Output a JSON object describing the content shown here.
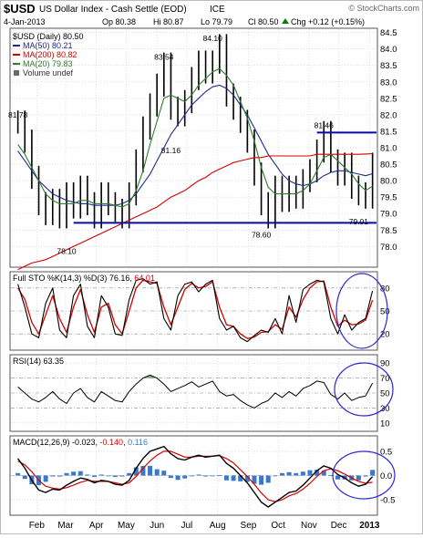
{
  "header": {
    "symbol": "$USD",
    "name": "US Dollar Index - Cash Settle (EOD)",
    "exchange": "ICE",
    "watermark": "© StockCharts.com",
    "date": "4-Jan-2013",
    "quote": {
      "open": "Op 80.38",
      "high": "Hi 80.87",
      "low": "Lo 79.79",
      "close": "Cl 80.50",
      "change": "Chg +0.12 (+0.15%)",
      "change_arrow": "up-arrow-icon"
    }
  },
  "colors": {
    "price": "#000000",
    "ma50": "#1f2a8a",
    "ma200": "#d40000",
    "ma20": "#2e7d2e",
    "support": "#0a0aa8",
    "stoch_k": "#000000",
    "stoch_d": "#d40000",
    "macd_hist": "#3b78c8",
    "rsi_overbought": "#7fa77f",
    "annotation": "#2a2ad0",
    "grid": "#c8c8c8"
  },
  "chart_data": [
    {
      "type": "line",
      "panel": "price",
      "title": "$USD (Daily) 80.50",
      "legend": [
        {
          "label": "MA(50) 80.21",
          "color": "#1f2a8a"
        },
        {
          "label": "MA(200) 80.82",
          "color": "#d40000"
        },
        {
          "label": "MA(20) 79.83",
          "color": "#2e7d2e"
        },
        {
          "label": "Volume undef",
          "color": "#6a6a6a"
        }
      ],
      "ylim": [
        77.4,
        84.6
      ],
      "yticks": [
        78.0,
        78.5,
        79.0,
        79.5,
        80.0,
        80.5,
        81.0,
        81.5,
        82.0,
        82.5,
        83.0,
        83.5,
        84.0,
        84.5
      ],
      "ytick_labels": [
        "78.0",
        "78.5",
        "79.0",
        "79.5",
        "80.0",
        "80.5",
        "81.0",
        "81.5",
        "82.0",
        "82.5",
        "83.0",
        "83.5",
        "84.0",
        "84.5"
      ],
      "x": [
        "2012-01-13",
        "2012-01-20",
        "2012-01-27",
        "2012-02-03",
        "2012-02-10",
        "2012-02-17",
        "2012-02-24",
        "2012-03-02",
        "2012-03-09",
        "2012-03-16",
        "2012-03-23",
        "2012-03-30",
        "2012-04-06",
        "2012-04-13",
        "2012-04-20",
        "2012-04-27",
        "2012-05-04",
        "2012-05-11",
        "2012-05-18",
        "2012-05-25",
        "2012-06-01",
        "2012-06-08",
        "2012-06-15",
        "2012-06-22",
        "2012-06-29",
        "2012-07-06",
        "2012-07-13",
        "2012-07-20",
        "2012-07-27",
        "2012-08-03",
        "2012-08-10",
        "2012-08-17",
        "2012-08-24",
        "2012-08-31",
        "2012-09-07",
        "2012-09-14",
        "2012-09-21",
        "2012-09-28",
        "2012-10-05",
        "2012-10-12",
        "2012-10-19",
        "2012-10-26",
        "2012-11-02",
        "2012-11-09",
        "2012-11-16",
        "2012-11-23",
        "2012-11-30",
        "2012-12-07",
        "2012-12-14",
        "2012-12-21",
        "2012-12-28",
        "2013-01-04"
      ],
      "series": [
        {
          "name": "$USD",
          "values": [
            81.78,
            81.2,
            80.1,
            79.3,
            79.0,
            79.4,
            78.9,
            79.6,
            79.2,
            79.8,
            79.3,
            78.9,
            79.6,
            79.3,
            79.1,
            78.9,
            79.6,
            80.6,
            81.6,
            82.3,
            82.9,
            83.54,
            82.2,
            82.0,
            82.4,
            83.1,
            83.6,
            83.3,
            83.6,
            84.1,
            82.6,
            82.2,
            81.8,
            81.2,
            80.2,
            79.3,
            78.9,
            79.8,
            79.4,
            79.8,
            79.5,
            80.0,
            80.3,
            80.9,
            81.46,
            80.6,
            80.2,
            80.5,
            79.8,
            79.6,
            79.5,
            80.5
          ]
        },
        {
          "name": "MA(50)",
          "values": [
            80.9,
            80.6,
            80.3,
            80.0,
            79.8,
            79.6,
            79.5,
            79.4,
            79.35,
            79.3,
            79.3,
            79.25,
            79.25,
            79.25,
            79.25,
            79.3,
            79.4,
            79.6,
            79.9,
            80.2,
            80.6,
            81.0,
            81.4,
            81.7,
            82.0,
            82.3,
            82.5,
            82.7,
            82.85,
            82.9,
            82.8,
            82.6,
            82.3,
            82.0,
            81.6,
            81.2,
            80.8,
            80.5,
            80.2,
            80.0,
            79.9,
            79.85,
            79.9,
            80.0,
            80.15,
            80.25,
            80.3,
            80.3,
            80.25,
            80.2,
            80.15,
            80.21
          ]
        },
        {
          "name": "MA(200)",
          "values": [
            77.3,
            77.4,
            77.5,
            77.55,
            77.6,
            77.7,
            77.8,
            77.9,
            78.0,
            78.1,
            78.2,
            78.3,
            78.4,
            78.5,
            78.6,
            78.7,
            78.8,
            78.9,
            79.0,
            79.1,
            79.2,
            79.35,
            79.5,
            79.6,
            79.7,
            79.85,
            80.0,
            80.1,
            80.25,
            80.35,
            80.45,
            80.55,
            80.6,
            80.65,
            80.7,
            80.7,
            80.75,
            80.75,
            80.75,
            80.75,
            80.75,
            80.75,
            80.75,
            80.8,
            80.8,
            80.8,
            80.8,
            80.8,
            80.8,
            80.8,
            80.81,
            80.82
          ]
        },
        {
          "name": "MA(20)",
          "values": [
            81.1,
            80.8,
            80.4,
            80.0,
            79.6,
            79.4,
            79.3,
            79.3,
            79.3,
            79.4,
            79.4,
            79.3,
            79.3,
            79.3,
            79.25,
            79.2,
            79.3,
            79.7,
            80.3,
            81.1,
            81.8,
            82.5,
            82.6,
            82.5,
            82.4,
            82.6,
            82.9,
            83.1,
            83.3,
            83.4,
            83.2,
            82.9,
            82.4,
            81.9,
            81.2,
            80.4,
            79.8,
            79.6,
            79.6,
            79.6,
            79.6,
            79.7,
            79.9,
            80.3,
            80.7,
            80.8,
            80.6,
            80.4,
            80.2,
            79.9,
            79.7,
            79.83
          ]
        }
      ],
      "annotations": [
        {
          "text": "81.78",
          "x": "2012-01-13",
          "y": 81.78
        },
        {
          "text": "78.10",
          "x": "2012-03-02",
          "y": 78.1
        },
        {
          "text": "83.54",
          "x": "2012-06-08",
          "y": 83.54
        },
        {
          "text": "81.16",
          "x": "2012-06-15",
          "y": 81.16
        },
        {
          "text": "84.10",
          "x": "2012-07-27",
          "y": 84.1
        },
        {
          "text": "78.60",
          "x": "2012-09-14",
          "y": 78.6
        },
        {
          "text": "81.46",
          "x": "2012-11-16",
          "y": 81.46
        },
        {
          "text": "79.01",
          "x": "2012-12-21",
          "y": 79.01
        }
      ],
      "lines": [
        {
          "type": "support",
          "y": 78.72,
          "from": "2012-03-09",
          "to": "2013-01-04"
        },
        {
          "type": "resistance",
          "y": 81.46,
          "from": "2012-11-09",
          "to": "2013-01-04"
        }
      ],
      "grid": true
    },
    {
      "type": "line",
      "panel": "stochastic",
      "title": "Full STO %K(14,3) %D(3) 76.16, 64.01",
      "title_parts": {
        "label": "Full STO %K(14,3) %D(3) ",
        "k": "76.16",
        "d": "64.01"
      },
      "ylim": [
        0,
        100
      ],
      "yticks": [
        20,
        50,
        80
      ],
      "ytick_labels": [
        "20",
        "50",
        "80"
      ],
      "series": [
        {
          "name": "%K",
          "values": [
            85,
            55,
            20,
            15,
            60,
            80,
            25,
            15,
            70,
            85,
            30,
            15,
            70,
            55,
            20,
            18,
            65,
            90,
            92,
            85,
            88,
            40,
            25,
            70,
            85,
            88,
            75,
            85,
            90,
            40,
            25,
            30,
            15,
            10,
            18,
            25,
            22,
            40,
            20,
            70,
            35,
            78,
            85,
            90,
            88,
            40,
            20,
            45,
            25,
            35,
            40,
            76.16
          ]
        },
        {
          "name": "%D",
          "values": [
            80,
            65,
            35,
            20,
            45,
            70,
            40,
            22,
            55,
            78,
            45,
            22,
            55,
            60,
            32,
            20,
            50,
            80,
            90,
            88,
            86,
            55,
            32,
            55,
            78,
            86,
            80,
            82,
            88,
            55,
            32,
            30,
            20,
            14,
            16,
            22,
            23,
            32,
            26,
            55,
            42,
            65,
            80,
            88,
            89,
            55,
            30,
            38,
            32,
            33,
            38,
            64.01
          ]
        }
      ]
    },
    {
      "type": "line",
      "panel": "rsi",
      "title": "RSI(14) 63.35",
      "ylim": [
        0,
        100
      ],
      "yticks": [
        10,
        30,
        50,
        70,
        90
      ],
      "ytick_labels": [
        "10",
        "30",
        "50",
        "70",
        "90"
      ],
      "series": [
        {
          "name": "RSI(14)",
          "values": [
            58,
            50,
            42,
            38,
            44,
            52,
            42,
            36,
            50,
            56,
            44,
            38,
            52,
            46,
            40,
            38,
            52,
            62,
            70,
            74,
            70,
            62,
            52,
            56,
            60,
            65,
            58,
            62,
            66,
            52,
            46,
            48,
            40,
            34,
            30,
            36,
            40,
            50,
            44,
            52,
            46,
            56,
            60,
            66,
            64,
            48,
            42,
            50,
            40,
            44,
            46,
            63.35
          ]
        }
      ]
    },
    {
      "type": "line",
      "panel": "macd",
      "title": "MACD(12,26,9) -0.023, -0.140, 0.116",
      "title_parts": {
        "label": "MACD(12,26,9) -0.023, ",
        "signal": "-0.140",
        "hist": "0.116"
      },
      "ylim": [
        -0.8,
        0.8
      ],
      "yticks": [
        -0.5,
        0.0,
        0.5
      ],
      "ytick_labels": [
        "-0.5",
        "0.0",
        "0.5"
      ],
      "series": [
        {
          "name": "MACD",
          "values": [
            0.35,
            0.15,
            -0.1,
            -0.3,
            -0.35,
            -0.28,
            -0.3,
            -0.2,
            -0.12,
            -0.05,
            -0.08,
            -0.15,
            -0.1,
            -0.12,
            -0.18,
            -0.2,
            -0.1,
            0.15,
            0.35,
            0.5,
            0.55,
            0.6,
            0.45,
            0.35,
            0.32,
            0.38,
            0.42,
            0.38,
            0.4,
            0.42,
            0.25,
            0.15,
            0.0,
            -0.15,
            -0.35,
            -0.55,
            -0.65,
            -0.55,
            -0.45,
            -0.35,
            -0.32,
            -0.2,
            -0.05,
            0.1,
            0.2,
            0.15,
            0.02,
            -0.05,
            -0.15,
            -0.22,
            -0.18,
            -0.023
          ]
        },
        {
          "name": "Signal",
          "values": [
            0.3,
            0.22,
            0.08,
            -0.1,
            -0.22,
            -0.26,
            -0.28,
            -0.25,
            -0.2,
            -0.14,
            -0.1,
            -0.12,
            -0.12,
            -0.12,
            -0.15,
            -0.18,
            -0.15,
            -0.02,
            0.15,
            0.3,
            0.42,
            0.5,
            0.5,
            0.44,
            0.38,
            0.38,
            0.4,
            0.4,
            0.4,
            0.41,
            0.35,
            0.26,
            0.12,
            -0.02,
            -0.18,
            -0.36,
            -0.5,
            -0.54,
            -0.5,
            -0.42,
            -0.37,
            -0.28,
            -0.16,
            -0.02,
            0.1,
            0.14,
            0.1,
            0.03,
            -0.05,
            -0.12,
            -0.16,
            -0.14
          ]
        },
        {
          "name": "Histogram",
          "values": [
            0.05,
            -0.07,
            -0.18,
            -0.2,
            -0.13,
            -0.02,
            -0.02,
            0.05,
            0.08,
            0.09,
            0.02,
            -0.03,
            0.02,
            0.0,
            -0.03,
            -0.02,
            0.05,
            0.17,
            0.2,
            0.2,
            0.13,
            0.1,
            -0.05,
            -0.09,
            -0.06,
            0.0,
            0.02,
            -0.02,
            0.0,
            0.01,
            -0.1,
            -0.11,
            -0.12,
            -0.13,
            -0.17,
            -0.19,
            -0.15,
            -0.01,
            0.05,
            0.07,
            0.05,
            0.08,
            0.11,
            0.12,
            0.1,
            0.01,
            -0.08,
            -0.08,
            -0.1,
            -0.1,
            -0.02,
            0.116
          ]
        }
      ]
    }
  ],
  "xaxis": {
    "months": [
      {
        "label": "Feb",
        "date": "2012-02-01"
      },
      {
        "label": "Mar",
        "date": "2012-03-01"
      },
      {
        "label": "Apr",
        "date": "2012-04-01"
      },
      {
        "label": "May",
        "date": "2012-05-01"
      },
      {
        "label": "Jun",
        "date": "2012-06-01"
      },
      {
        "label": "Jul",
        "date": "2012-07-01"
      },
      {
        "label": "Aug",
        "date": "2012-08-01"
      },
      {
        "label": "Sep",
        "date": "2012-09-01"
      },
      {
        "label": "Oct",
        "date": "2012-10-01"
      },
      {
        "label": "Nov",
        "date": "2012-11-01"
      },
      {
        "label": "Dec",
        "date": "2012-12-01"
      },
      {
        "label": "2013",
        "date": "2013-01-01"
      }
    ]
  }
}
